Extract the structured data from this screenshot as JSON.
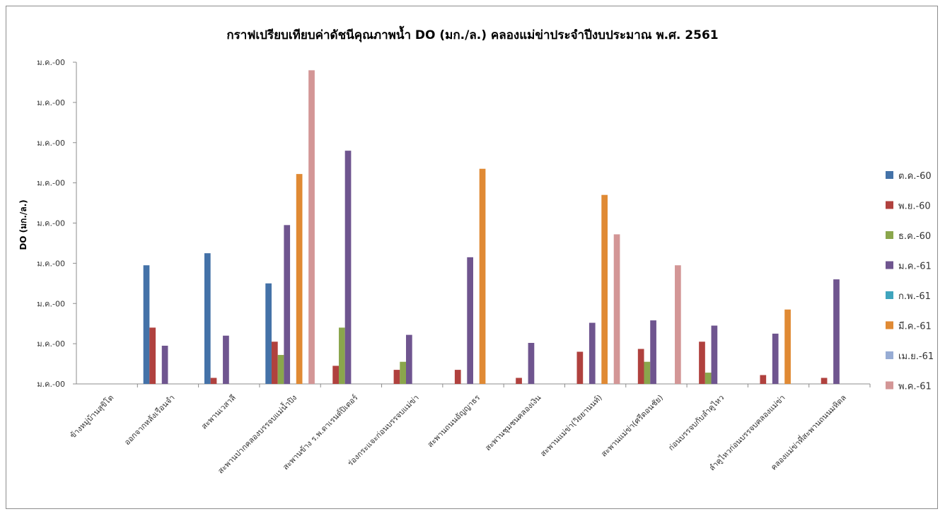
{
  "chart_data": {
    "type": "bar",
    "title": "กราฟเปรียบเทียบค่าดัชนีคุณภาพน้ำ  DO (มก./ล.) คลองแม่ข่าประจำปีงบประมาณ พ.ศ. 2561",
    "ylabel": "DO  (มก./ล.)",
    "xlabel": "",
    "y_tick_labels": [
      "ม.ค.-00",
      "ม.ค.-00",
      "ม.ค.-00",
      "ม.ค.-00",
      "ม.ค.-00",
      "ม.ค.-00",
      "ม.ค.-00",
      "ม.ค.-00",
      "ม.ค.-00"
    ],
    "ylim": [
      0,
      8
    ],
    "categories": [
      "ข้างหมู่บ้านสุขิโต",
      "ออกจากหลังเรือนจำ",
      "สะพานเวสาลี",
      "สะพานปากคลองบรรจบแม่น้ำปิง",
      "สะพานข้าง ร.พ.ดาเรนด์ปิเตอร์",
      "ร่องกระแจะก่อนบรรจบแม่ข่า",
      "สะพานถนนอัญญาธร",
      "สะพานชุมชนคลองเงิน",
      "สะพานแม่ข่า(วิยยานนท์)",
      "สะพานแม่ข่า(ศรีดอนชัย)",
      "ก่อนบรรจบกับลำคูไหว",
      "ลำคูไหวก่อนบรรจบคลองแม่ข่า",
      "คลองแม่ข่าที่สะพานถนนมหิดล"
    ],
    "series": [
      {
        "name": "ต.ค.-60",
        "color": "#4472a8",
        "values": [
          null,
          2.95,
          3.25,
          2.5,
          null,
          null,
          null,
          null,
          null,
          null,
          null,
          null,
          null
        ]
      },
      {
        "name": "พ.ย.-60",
        "color": "#b0413e",
        "values": [
          null,
          1.4,
          0.15,
          1.05,
          0.45,
          0.35,
          0.35,
          0.15,
          0.8,
          0.87,
          1.05,
          0.22,
          0.15
        ]
      },
      {
        "name": "ธ.ค.-60",
        "color": "#8aa64c",
        "values": [
          null,
          null,
          null,
          0.72,
          1.4,
          0.55,
          null,
          null,
          null,
          0.55,
          0.28,
          null,
          null
        ]
      },
      {
        "name": "ม.ค.-61",
        "color": "#6f558f",
        "values": [
          null,
          0.95,
          1.2,
          3.95,
          5.8,
          1.22,
          3.15,
          1.02,
          1.52,
          1.58,
          1.45,
          1.25,
          2.6
        ]
      },
      {
        "name": "ก.พ.-61",
        "color": "#3fa4bd",
        "values": [
          null,
          null,
          null,
          null,
          null,
          null,
          null,
          null,
          null,
          null,
          null,
          null,
          null
        ]
      },
      {
        "name": "มี.ค.-61",
        "color": "#e08a34",
        "values": [
          null,
          null,
          null,
          5.22,
          null,
          null,
          5.35,
          null,
          4.7,
          null,
          null,
          1.85,
          null
        ]
      },
      {
        "name": "เม.ย.-61",
        "color": "#97acd4",
        "values": [
          null,
          null,
          null,
          null,
          null,
          null,
          null,
          null,
          null,
          null,
          null,
          null,
          null
        ]
      },
      {
        "name": "พ.ค.-61",
        "color": "#d39696",
        "values": [
          null,
          null,
          null,
          7.8,
          null,
          null,
          null,
          null,
          3.72,
          2.95,
          null,
          null,
          null
        ]
      }
    ],
    "legend": "right",
    "grid": false
  }
}
